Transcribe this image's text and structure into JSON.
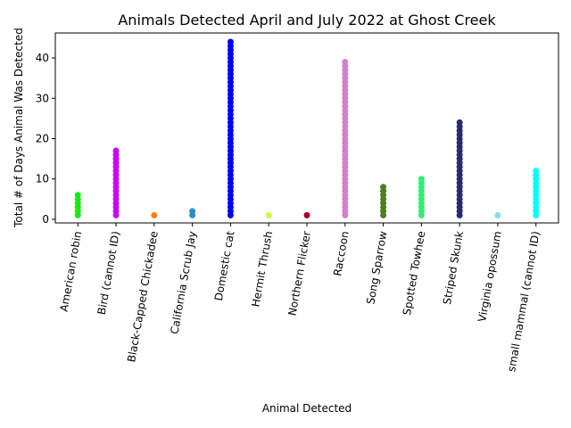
{
  "chart_data": {
    "type": "strip",
    "title": "Animals Detected April and July 2022 at Ghost Creek",
    "x_label": "Animal Detected",
    "y_label": "Total # of Days Animal Was Detected",
    "categories": [
      "American robin",
      "Bird (cannot ID)",
      "Black-Capped Chickadee",
      "California Scrub Jay",
      "Domestic cat",
      "Hermit Thrush",
      "Northern Flicker",
      "Raccoon",
      "Song Sparrow",
      "Spotted Towhee",
      "Striped Skunk",
      "Virginia opossum",
      "small mammal (cannot ID)"
    ],
    "colors": [
      "#11ee11",
      "#cc00ff",
      "#f5820f",
      "#2e8bc9",
      "#0000ff",
      "#ccff33",
      "#a50026",
      "#d67fcb",
      "#4d7f1f",
      "#33ee77",
      "#2a2a6e",
      "#88ddee",
      "#00ffff"
    ],
    "values": [
      [
        1,
        2,
        3,
        4,
        5,
        6
      ],
      [
        1,
        2,
        3,
        4,
        5,
        6,
        7,
        8,
        9,
        10,
        11,
        12,
        13,
        14,
        15,
        16,
        17
      ],
      [
        1
      ],
      [
        1,
        2
      ],
      [
        1,
        2,
        3,
        4,
        5,
        6,
        7,
        8,
        9,
        10,
        11,
        12,
        13,
        14,
        15,
        16,
        17,
        18,
        19,
        20,
        21,
        22,
        23,
        24,
        25,
        26,
        27,
        28,
        29,
        30,
        31,
        32,
        33,
        34,
        35,
        36,
        37,
        38,
        39,
        40,
        41,
        42,
        43,
        44
      ],
      [
        1
      ],
      [
        1
      ],
      [
        1,
        2,
        3,
        4,
        5,
        6,
        7,
        8,
        9,
        10,
        11,
        12,
        13,
        14,
        15,
        16,
        17,
        18,
        19,
        20,
        21,
        22,
        23,
        24,
        25,
        26,
        27,
        28,
        29,
        30,
        31,
        32,
        33,
        34,
        35,
        36,
        37,
        38,
        39
      ],
      [
        1,
        2,
        3,
        4,
        5,
        6,
        7,
        8
      ],
      [
        1,
        2,
        3,
        4,
        5,
        6,
        7,
        8,
        9,
        10
      ],
      [
        1,
        2,
        3,
        4,
        5,
        6,
        7,
        8,
        9,
        10,
        11,
        12,
        13,
        14,
        15,
        16,
        17,
        18,
        19,
        20,
        21,
        22,
        23,
        24
      ],
      [
        1
      ],
      [
        1,
        2,
        3,
        4,
        5,
        6,
        7,
        8,
        9,
        10,
        11,
        12
      ]
    ],
    "ylim": [
      -0.9,
      46.2
    ],
    "yticks": [
      0,
      10,
      20,
      30,
      40
    ]
  }
}
